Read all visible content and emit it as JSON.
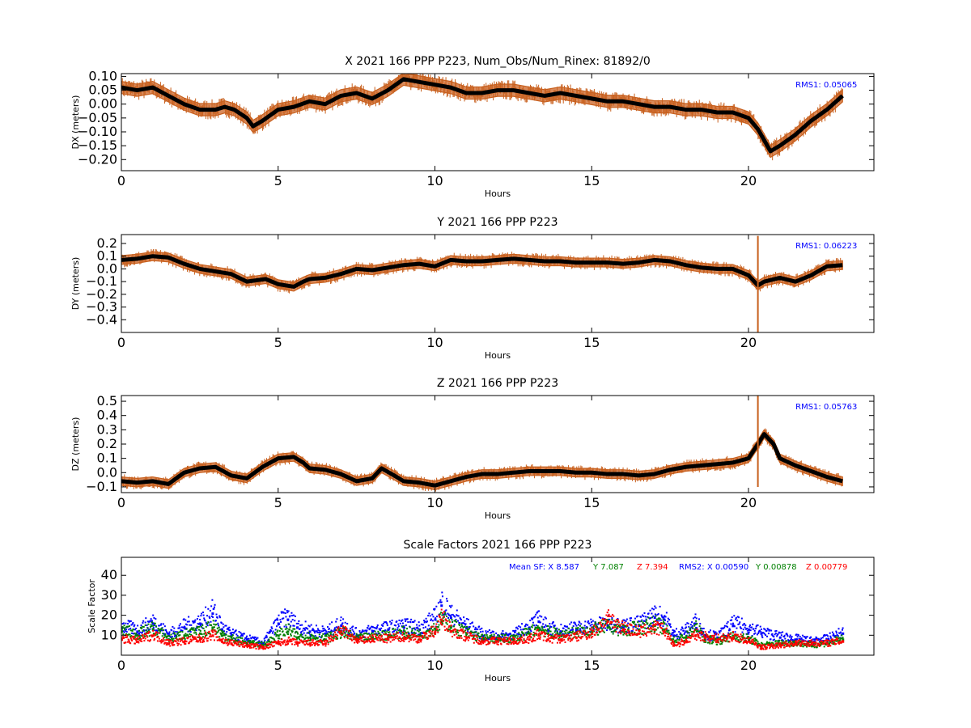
{
  "chart_data": [
    {
      "type": "line",
      "title": "X 2021 166 PPP  P223, Num_Obs/Num_Rinex: 81892/0",
      "xlabel": "Hours",
      "ylabel": "DX (meters)",
      "xlim": [
        0,
        24
      ],
      "ylim": [
        -0.24,
        0.11
      ],
      "xticks": [
        0,
        5,
        10,
        15,
        20
      ],
      "yticks": [
        0.1,
        0.05,
        0.0,
        -0.05,
        -0.1,
        -0.15,
        -0.2
      ],
      "ytick_labels": [
        "0.10",
        "0.05",
        "0.00",
        "−0.05",
        "−0.10",
        "−0.15",
        "−0.20"
      ],
      "annotation": "RMS1:  0.05065",
      "band_half_width": 0.022,
      "series": [
        {
          "role": "estimate",
          "x": [
            0,
            0.5,
            1,
            1.5,
            2,
            2.5,
            3,
            3.3,
            3.6,
            4.0,
            4.2,
            4.5,
            5,
            5.5,
            6,
            6.5,
            7,
            7.5,
            8,
            8.5,
            9,
            9.5,
            10,
            10.5,
            11,
            11.5,
            12,
            12.5,
            13,
            13.5,
            14,
            14.5,
            15,
            15.5,
            16,
            16.5,
            17,
            17.5,
            18,
            18.5,
            19,
            19.5,
            20,
            20.3,
            20.5,
            20.7,
            21,
            21.5,
            22,
            22.5,
            23
          ],
          "y": [
            0.06,
            0.05,
            0.06,
            0.03,
            0.0,
            -0.02,
            -0.02,
            -0.01,
            -0.02,
            -0.05,
            -0.08,
            -0.06,
            -0.02,
            -0.01,
            0.01,
            0.0,
            0.03,
            0.04,
            0.02,
            0.05,
            0.09,
            0.08,
            0.07,
            0.06,
            0.04,
            0.04,
            0.05,
            0.05,
            0.04,
            0.03,
            0.04,
            0.03,
            0.02,
            0.01,
            0.01,
            0.0,
            -0.01,
            -0.01,
            -0.02,
            -0.02,
            -0.03,
            -0.03,
            -0.05,
            -0.09,
            -0.13,
            -0.17,
            -0.15,
            -0.11,
            -0.06,
            -0.02,
            0.03
          ]
        }
      ]
    },
    {
      "type": "line",
      "title": "Y 2021 166 PPP  P223",
      "xlabel": "Hours",
      "ylabel": "DY (meters)",
      "xlim": [
        0,
        24
      ],
      "ylim": [
        -0.5,
        0.27
      ],
      "xticks": [
        0,
        5,
        10,
        15,
        20
      ],
      "yticks": [
        0.2,
        0.1,
        0.0,
        -0.1,
        -0.2,
        -0.3,
        -0.4
      ],
      "ytick_labels": [
        "0.2",
        "0.1",
        "0.0",
        "−0.1",
        "−0.2",
        "−0.3",
        "−0.4"
      ],
      "annotation": "RMS1:  0.06223",
      "band_half_width": 0.035,
      "series": [
        {
          "role": "estimate",
          "x": [
            0,
            0.5,
            1,
            1.5,
            2,
            2.5,
            3,
            3.5,
            4,
            4.3,
            4.6,
            5,
            5.5,
            5.8,
            6,
            6.5,
            7,
            7.5,
            8,
            8.5,
            9,
            9.5,
            10,
            10.5,
            11,
            11.5,
            12,
            12.5,
            13,
            13.5,
            14,
            14.5,
            15,
            15.5,
            16,
            16.5,
            17,
            17.5,
            18,
            18.5,
            19,
            19.5,
            20,
            20.3,
            20.5,
            21,
            21.5,
            22,
            22.5,
            23
          ],
          "y": [
            0.07,
            0.08,
            0.1,
            0.09,
            0.04,
            0.0,
            -0.02,
            -0.04,
            -0.1,
            -0.09,
            -0.08,
            -0.12,
            -0.14,
            -0.1,
            -0.08,
            -0.07,
            -0.04,
            0.0,
            -0.01,
            0.01,
            0.03,
            0.04,
            0.02,
            0.07,
            0.06,
            0.06,
            0.07,
            0.08,
            0.07,
            0.06,
            0.06,
            0.05,
            0.05,
            0.05,
            0.04,
            0.05,
            0.07,
            0.06,
            0.03,
            0.01,
            0.0,
            0.0,
            -0.05,
            -0.13,
            -0.1,
            -0.07,
            -0.1,
            -0.05,
            0.02,
            0.03
          ]
        }
      ]
    },
    {
      "type": "line",
      "title": "Z 2021 166 PPP  P223",
      "xlabel": "Hours",
      "ylabel": "DZ (meters)",
      "xlim": [
        0,
        24
      ],
      "ylim": [
        -0.14,
        0.54
      ],
      "xticks": [
        0,
        5,
        10,
        15,
        20
      ],
      "yticks": [
        0.5,
        0.4,
        0.3,
        0.2,
        0.1,
        0.0,
        -0.1
      ],
      "ytick_labels": [
        "0.5",
        "0.4",
        "0.3",
        "0.2",
        "0.1",
        "0.0",
        "−0.1"
      ],
      "annotation": "RMS1:  0.05763",
      "band_half_width": 0.03,
      "series": [
        {
          "role": "estimate",
          "x": [
            0,
            0.5,
            1,
            1.5,
            2,
            2.5,
            3,
            3.5,
            4,
            4.5,
            5,
            5.5,
            5.8,
            6,
            6.5,
            7,
            7.5,
            8,
            8.3,
            8.7,
            9,
            9.5,
            10,
            10.5,
            11,
            11.5,
            12,
            12.5,
            13,
            13.5,
            14,
            14.5,
            15,
            15.5,
            16,
            16.5,
            17,
            17.5,
            18,
            18.5,
            19,
            19.5,
            20,
            20.3,
            20.5,
            20.8,
            21,
            21.5,
            22,
            22.5,
            23
          ],
          "y": [
            -0.06,
            -0.07,
            -0.06,
            -0.08,
            0.0,
            0.03,
            0.04,
            -0.02,
            -0.04,
            0.04,
            0.1,
            0.11,
            0.07,
            0.03,
            0.02,
            -0.01,
            -0.06,
            -0.04,
            0.03,
            -0.02,
            -0.06,
            -0.07,
            -0.09,
            -0.06,
            -0.03,
            -0.01,
            -0.01,
            0.0,
            0.01,
            0.01,
            0.01,
            0.0,
            0.0,
            -0.01,
            -0.01,
            -0.02,
            -0.01,
            0.02,
            0.04,
            0.05,
            0.06,
            0.07,
            0.1,
            0.2,
            0.27,
            0.2,
            0.1,
            0.05,
            0.01,
            -0.03,
            -0.06
          ]
        }
      ]
    },
    {
      "type": "scatter",
      "title": "Scale Factors 2021 166 PPP  P223",
      "xlabel": "Hours",
      "ylabel": "Scale Factor",
      "xlim": [
        0,
        24
      ],
      "ylim": [
        0,
        49
      ],
      "xticks": [
        0,
        5,
        10,
        15,
        20
      ],
      "yticks": [
        40,
        30,
        20,
        10
      ],
      "ytick_labels": [
        "40",
        "30",
        "20",
        "10"
      ],
      "legend_text": [
        {
          "text": "Mean SF: X   8.587",
          "color": "#0000ff"
        },
        {
          "text": "Y   7.087",
          "color": "#008000"
        },
        {
          "text": "Z   7.394",
          "color": "#ff0000"
        },
        {
          "text": "RMS2: X  0.00590",
          "color": "#0000ff"
        },
        {
          "text": "Y  0.00878",
          "color": "#008000"
        },
        {
          "text": "Z  0.00779",
          "color": "#ff0000"
        }
      ],
      "series": [
        {
          "name": "X",
          "color": "#0000ff",
          "x": [
            0,
            0.5,
            1,
            1.5,
            2,
            2.5,
            2.9,
            3.2,
            3.5,
            4,
            4.5,
            5,
            5.3,
            5.6,
            6,
            6.5,
            7,
            7.5,
            8,
            8.5,
            9,
            9.5,
            10,
            10.2,
            10.5,
            11,
            11.5,
            12,
            12.5,
            13,
            13.3,
            13.6,
            14,
            14.5,
            15,
            15.5,
            16,
            16.5,
            17,
            17.3,
            17.6,
            18,
            18.3,
            18.6,
            19,
            19.5,
            20,
            20.4,
            21,
            21.5,
            22,
            22.5,
            23
          ],
          "y": [
            14,
            12,
            16,
            10,
            14,
            16,
            21,
            13,
            10,
            8,
            6,
            16,
            18,
            14,
            12,
            11,
            15,
            10,
            12,
            13,
            14,
            13,
            18,
            25,
            19,
            14,
            10,
            9,
            10,
            14,
            17,
            13,
            12,
            13,
            14,
            15,
            14,
            15,
            19,
            18,
            10,
            12,
            16,
            10,
            9,
            15,
            13,
            11,
            9,
            8,
            7,
            8,
            11
          ]
        },
        {
          "name": "Y",
          "color": "#008000",
          "x": [
            0,
            0.5,
            1,
            1.5,
            2,
            2.5,
            2.9,
            3.2,
            3.5,
            4,
            4.5,
            5,
            5.3,
            5.6,
            6,
            6.5,
            7,
            7.5,
            8,
            8.5,
            9,
            9.5,
            10,
            10.2,
            10.5,
            11,
            11.5,
            12,
            12.5,
            13,
            13.3,
            13.6,
            14,
            14.5,
            15,
            15.5,
            16,
            16.5,
            17,
            17.3,
            17.6,
            18,
            18.3,
            18.6,
            19,
            19.5,
            20,
            20.4,
            21,
            21.5,
            22,
            22.5,
            23
          ],
          "y": [
            12,
            10,
            13,
            8,
            10,
            11,
            14,
            10,
            8,
            6,
            5,
            10,
            12,
            9,
            9,
            8,
            11,
            8,
            9,
            10,
            11,
            10,
            13,
            17,
            14,
            11,
            8,
            8,
            8,
            11,
            13,
            11,
            10,
            11,
            12,
            14,
            12,
            13,
            15,
            13,
            7,
            9,
            13,
            8,
            7,
            9,
            8,
            5,
            6,
            6,
            5,
            6,
            8
          ]
        },
        {
          "name": "Z",
          "color": "#ff0000",
          "x": [
            0,
            0.5,
            1,
            1.5,
            2,
            2.5,
            2.9,
            3.2,
            3.5,
            4,
            4.5,
            5,
            5.3,
            5.6,
            6,
            6.5,
            7,
            7.5,
            8,
            8.5,
            9,
            9.5,
            10,
            10.2,
            10.5,
            11,
            11.5,
            12,
            12.5,
            13,
            13.3,
            13.6,
            14,
            14.5,
            15,
            15.5,
            16,
            16.5,
            17,
            17.3,
            17.6,
            18,
            18.3,
            18.6,
            19,
            19.5,
            20,
            20.4,
            21,
            21.5,
            22,
            22.5,
            23
          ],
          "y": [
            8,
            7,
            10,
            6,
            7,
            8,
            10,
            7,
            6,
            5,
            4,
            6,
            7,
            6,
            6,
            6,
            12,
            7,
            8,
            8,
            9,
            8,
            12,
            18,
            12,
            9,
            7,
            7,
            7,
            8,
            10,
            8,
            8,
            9,
            11,
            17,
            13,
            11,
            13,
            12,
            5,
            7,
            10,
            9,
            8,
            9,
            7,
            4,
            5,
            6,
            6,
            6,
            7
          ]
        }
      ]
    }
  ]
}
